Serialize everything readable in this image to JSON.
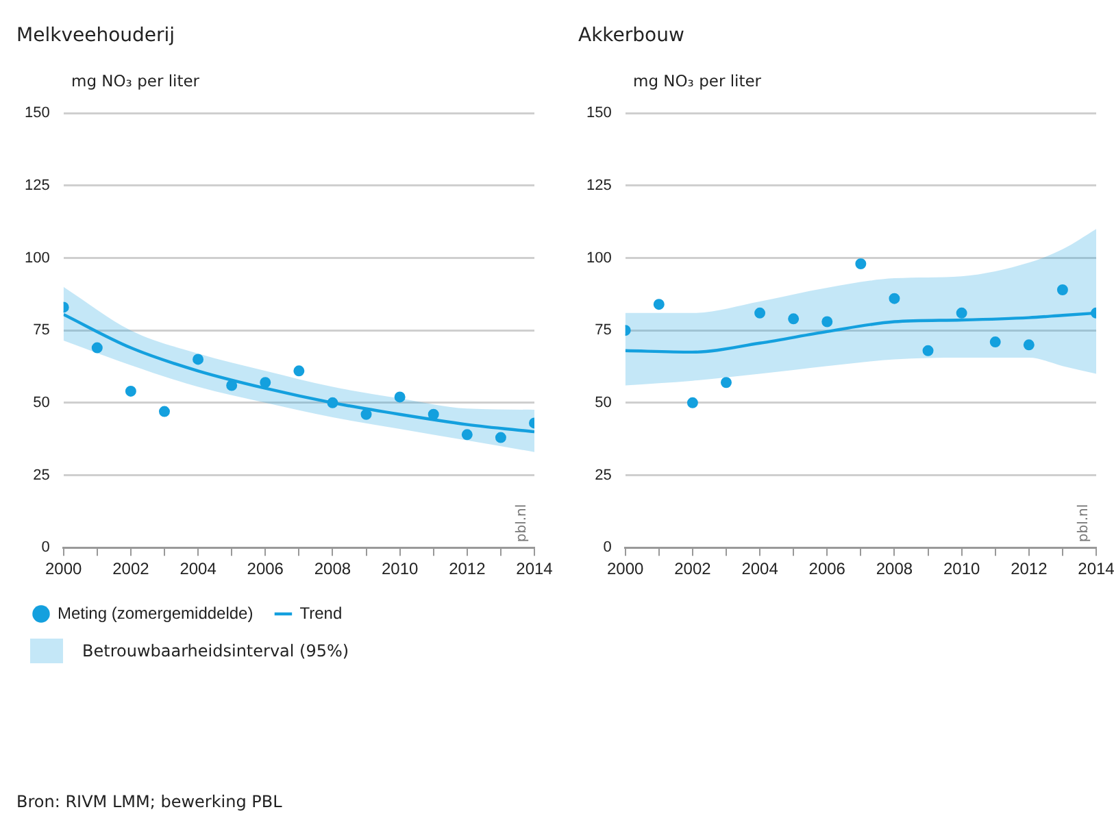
{
  "chart_data": [
    {
      "type": "scatter",
      "title": "Melkveehouderij",
      "ylabel": "mg NO₃ per liter",
      "xlim": [
        2000,
        2014
      ],
      "xticks": [
        2000,
        {
          "value": 2001,
          "label": null
        },
        2002,
        {
          "value": 2003,
          "label": null
        },
        2004,
        {
          "value": 2005,
          "label": null
        },
        2006,
        {
          "value": 2007,
          "label": null
        },
        2008,
        {
          "value": 2009,
          "label": null
        },
        2010,
        {
          "value": 2011,
          "label": null
        },
        2012,
        {
          "value": 2013,
          "label": null
        },
        2014
      ],
      "ylim": [
        0,
        150
      ],
      "yticks": [
        0,
        25,
        50,
        75,
        100,
        125,
        150
      ],
      "grid": "y",
      "legend": "bottom",
      "annotations": [
        "pbl.nl",
        "Betrouwbaarheidsinterval (95%)",
        "Bron: RIVM LMM; bewerking PBL"
      ],
      "x": [
        2000,
        2001,
        2002,
        2003,
        2004,
        2005,
        2006,
        2007,
        2008,
        2009,
        2010,
        2011,
        2012,
        2013,
        2014
      ],
      "series": [
        {
          "name": "Meting (zomergemiddelde)",
          "type": "scatter",
          "marker": "circle",
          "color": "#14a0de",
          "values": [
            83,
            69,
            54,
            47,
            65,
            56,
            57,
            61,
            50,
            46,
            52,
            46,
            39,
            38,
            43
          ]
        },
        {
          "name": "Trend",
          "type": "line",
          "marker": "none",
          "color": "#14a0de",
          "x": [
            2000,
            2002,
            2004,
            2006,
            2008,
            2010,
            2012,
            2014
          ],
          "values": [
            80.5,
            69,
            61,
            55,
            50,
            46,
            42.5,
            40
          ],
          "lower": [
            71.5,
            63,
            55.5,
            50,
            45,
            41,
            37,
            33
          ],
          "upper": [
            90,
            75,
            67,
            61,
            55.5,
            51.5,
            48,
            47.6
          ]
        }
      ]
    },
    {
      "type": "scatter",
      "title": "Akkerbouw",
      "ylabel": "mg NO₃ per liter",
      "xlim": [
        2000,
        2014
      ],
      "xticks": [
        2000,
        {
          "value": 2001,
          "label": null
        },
        2002,
        {
          "value": 2003,
          "label": null
        },
        2004,
        {
          "value": 2005,
          "label": null
        },
        2006,
        {
          "value": 2007,
          "label": null
        },
        2008,
        {
          "value": 2009,
          "label": null
        },
        2010,
        {
          "value": 2011,
          "label": null
        },
        2012,
        {
          "value": 2013,
          "label": null
        },
        2014
      ],
      "ylim": [
        0,
        150
      ],
      "yticks": [
        0,
        25,
        50,
        75,
        100,
        125,
        150
      ],
      "grid": "y",
      "annotations": [
        "pbl.nl"
      ],
      "x": [
        2000,
        2001,
        2002,
        2003,
        2004,
        2005,
        2006,
        2007,
        2008,
        2009,
        2010,
        2011,
        2012,
        2013,
        2014
      ],
      "series": [
        {
          "type": "scatter",
          "marker": "circle",
          "color": "#14a0de",
          "values": [
            75,
            84,
            50,
            57,
            81,
            79,
            78,
            98,
            86,
            68,
            81,
            71,
            70,
            89,
            81
          ]
        },
        {
          "type": "line",
          "marker": "none",
          "color": "#14a0de",
          "x": [
            2000,
            2002,
            2004,
            2006,
            2008,
            2010,
            2012,
            2013,
            2014
          ],
          "values": [
            68,
            67.5,
            70.6,
            74.6,
            78,
            78.6,
            79.4,
            80.2,
            81
          ],
          "lower": [
            56,
            57.6,
            60,
            62.7,
            65,
            65.6,
            65.6,
            62.7,
            60
          ],
          "upper": [
            81,
            81,
            85,
            89.7,
            93,
            93.7,
            98.4,
            103,
            110
          ]
        }
      ]
    }
  ]
}
